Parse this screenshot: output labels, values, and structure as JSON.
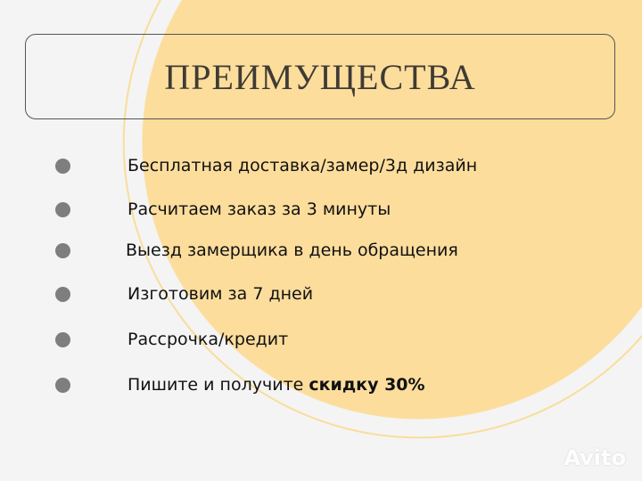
{
  "title": "ПРЕИМУЩЕСТВА",
  "items": [
    {
      "text": "Бесплатная доставка/замер/3д дизайн"
    },
    {
      "text": "Расчитаем заказ за 3 минуты"
    },
    {
      "text": "Выезд замерщика в день обращения"
    },
    {
      "text": "Изготовим за 7 дней"
    },
    {
      "text": "Рассрочка/кредит"
    },
    {
      "text": "Пишите и получите ",
      "bold": "скидку 30%"
    }
  ],
  "watermark": "Avito",
  "colors": {
    "accent": "#fcdd9c",
    "bullet": "#7e7e7e",
    "title": "#3f3b34"
  }
}
